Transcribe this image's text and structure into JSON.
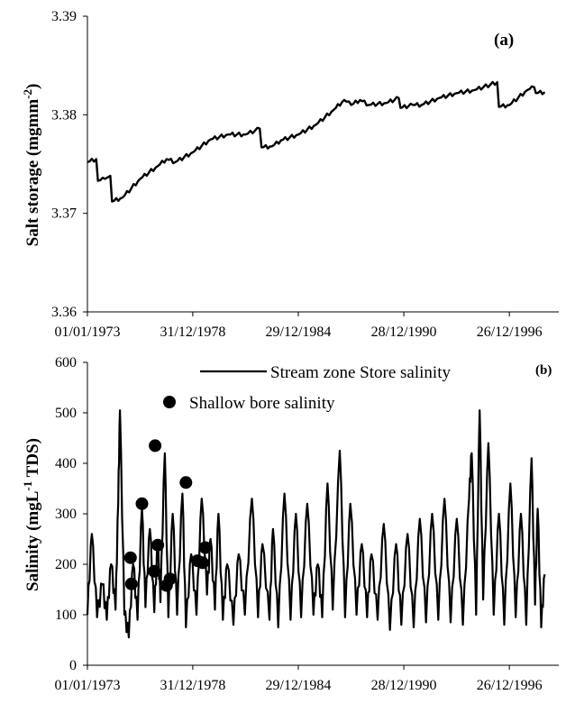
{
  "chart_data": [
    {
      "type": "line",
      "panel_label": "(a)",
      "ylabel_main": "Salt storage (mgmm",
      "ylabel_sup": "-2",
      "ylabel_close": ")",
      "ylim": [
        3.36,
        3.39
      ],
      "yticks": [
        "3.36",
        "3.37",
        "3.38",
        "3.39"
      ],
      "xticks": [
        "01/01/1973",
        "31/12/1978",
        "29/12/1984",
        "28/12/1990",
        "26/12/1996"
      ],
      "grid": false,
      "series": [
        {
          "points": [
            [
              1973.0,
              3.3752
            ],
            [
              1973.5,
              3.3755
            ],
            [
              1973.6,
              3.3733
            ],
            [
              1974.0,
              3.3735
            ],
            [
              1974.3,
              3.3738
            ],
            [
              1974.4,
              3.3712
            ],
            [
              1975.0,
              3.3716
            ],
            [
              1976.0,
              3.3735
            ],
            [
              1977.0,
              3.3748
            ],
            [
              1977.5,
              3.3755
            ],
            [
              1978.0,
              3.3752
            ],
            [
              1979.0,
              3.3762
            ],
            [
              1980.0,
              3.3775
            ],
            [
              1981.0,
              3.378
            ],
            [
              1982.0,
              3.378
            ],
            [
              1982.8,
              3.3786
            ],
            [
              1982.9,
              3.3767
            ],
            [
              1983.5,
              3.3768
            ],
            [
              1984.0,
              3.3774
            ],
            [
              1985.0,
              3.378
            ],
            [
              1986.0,
              3.379
            ],
            [
              1987.0,
              3.3805
            ],
            [
              1987.6,
              3.3815
            ],
            [
              1988.0,
              3.381
            ],
            [
              1988.5,
              3.3815
            ],
            [
              1989.0,
              3.381
            ],
            [
              1990.0,
              3.3812
            ],
            [
              1990.7,
              3.3817
            ],
            [
              1990.8,
              3.3807
            ],
            [
              1991.5,
              3.381
            ],
            [
              1992.0,
              3.381
            ],
            [
              1993.0,
              3.3817
            ],
            [
              1994.0,
              3.3822
            ],
            [
              1995.0,
              3.3825
            ],
            [
              1996.3,
              3.3833
            ],
            [
              1996.4,
              3.3808
            ],
            [
              1997.0,
              3.381
            ],
            [
              1998.0,
              3.3825
            ],
            [
              1998.4,
              3.3828
            ],
            [
              1998.5,
              3.3822
            ],
            [
              1999.0,
              3.3823
            ]
          ]
        }
      ]
    },
    {
      "type": "line",
      "panel_label": "(b)",
      "ylabel_main": "Salinity (mgL",
      "ylabel_sup": "-1",
      "ylabel_close": " TDS)",
      "ylim": [
        0,
        600
      ],
      "yticks": [
        "0",
        "100",
        "200",
        "300",
        "400",
        "500",
        "600"
      ],
      "xticks": [
        "01/01/1973",
        "31/12/1978",
        "29/12/1984",
        "28/12/1990",
        "26/12/1996"
      ],
      "grid": false,
      "legend": {
        "placement": "top-center",
        "line_entry": "Stream zone Store salinity",
        "point_entry": "Shallow bore salinity"
      },
      "series": [
        {
          "name": "Stream zone Store salinity",
          "peaks": [
            [
              1973.0,
              100
            ],
            [
              1973.25,
              260
            ],
            [
              1973.55,
              95
            ],
            [
              1973.85,
              160
            ],
            [
              1974.1,
              90
            ],
            [
              1974.35,
              200
            ],
            [
              1974.6,
              110
            ],
            [
              1974.75,
              320
            ],
            [
              1974.85,
              505
            ],
            [
              1975.1,
              100
            ],
            [
              1975.35,
              55
            ],
            [
              1975.6,
              200
            ],
            [
              1975.85,
              90
            ],
            [
              1976.1,
              310
            ],
            [
              1976.3,
              115
            ],
            [
              1976.55,
              270
            ],
            [
              1976.8,
              105
            ],
            [
              1977.0,
              240
            ],
            [
              1977.15,
              125
            ],
            [
              1977.4,
              420
            ],
            [
              1977.6,
              95
            ],
            [
              1977.85,
              300
            ],
            [
              1978.1,
              100
            ],
            [
              1978.4,
              340
            ],
            [
              1978.6,
              75
            ],
            [
              1978.9,
              220
            ],
            [
              1979.2,
              100
            ],
            [
              1979.5,
              330
            ],
            [
              1979.8,
              140
            ],
            [
              1980.0,
              250
            ],
            [
              1980.25,
              110
            ],
            [
              1980.45,
              300
            ],
            [
              1980.7,
              90
            ],
            [
              1980.95,
              200
            ],
            [
              1981.3,
              80
            ],
            [
              1981.6,
              220
            ],
            [
              1981.95,
              100
            ],
            [
              1982.35,
              330
            ],
            [
              1982.7,
              95
            ],
            [
              1982.95,
              240
            ],
            [
              1983.35,
              90
            ],
            [
              1983.55,
              270
            ],
            [
              1983.85,
              75
            ],
            [
              1984.2,
              340
            ],
            [
              1984.55,
              90
            ],
            [
              1984.85,
              300
            ],
            [
              1985.15,
              95
            ],
            [
              1985.5,
              320
            ],
            [
              1985.85,
              100
            ],
            [
              1986.1,
              200
            ],
            [
              1986.35,
              95
            ],
            [
              1986.65,
              360
            ],
            [
              1986.95,
              110
            ],
            [
              1987.35,
              425
            ],
            [
              1987.65,
              95
            ],
            [
              1987.95,
              320
            ],
            [
              1988.3,
              100
            ],
            [
              1988.6,
              240
            ],
            [
              1988.9,
              95
            ],
            [
              1989.15,
              220
            ],
            [
              1989.5,
              90
            ],
            [
              1989.85,
              280
            ],
            [
              1990.2,
              70
            ],
            [
              1990.55,
              240
            ],
            [
              1990.85,
              80
            ],
            [
              1991.2,
              260
            ],
            [
              1991.55,
              75
            ],
            [
              1991.9,
              290
            ],
            [
              1992.25,
              85
            ],
            [
              1992.6,
              300
            ],
            [
              1992.95,
              90
            ],
            [
              1993.3,
              330
            ],
            [
              1993.65,
              85
            ],
            [
              1994.0,
              290
            ],
            [
              1994.35,
              80
            ],
            [
              1994.7,
              330
            ],
            [
              1994.85,
              420
            ],
            [
              1995.1,
              100
            ],
            [
              1995.3,
              505
            ],
            [
              1995.5,
              130
            ],
            [
              1995.8,
              440
            ],
            [
              1996.1,
              100
            ],
            [
              1996.4,
              300
            ],
            [
              1996.7,
              80
            ],
            [
              1997.05,
              360
            ],
            [
              1997.35,
              95
            ],
            [
              1997.65,
              300
            ],
            [
              1997.95,
              80
            ],
            [
              1998.25,
              410
            ],
            [
              1998.45,
              120
            ],
            [
              1998.6,
              310
            ],
            [
              1998.8,
              75
            ],
            [
              1999.0,
              180
            ]
          ]
        },
        {
          "name": "Shallow bore salinity",
          "points": [
            [
              1975.45,
              213
            ],
            [
              1975.5,
              161
            ],
            [
              1976.1,
              320
            ],
            [
              1976.85,
              435
            ],
            [
              1976.8,
              186
            ],
            [
              1977.0,
              238
            ],
            [
              1977.5,
              158
            ],
            [
              1977.7,
              171
            ],
            [
              1978.6,
              362
            ],
            [
              1979.25,
              207
            ],
            [
              1979.55,
              203
            ],
            [
              1979.7,
              233
            ]
          ]
        }
      ]
    }
  ]
}
